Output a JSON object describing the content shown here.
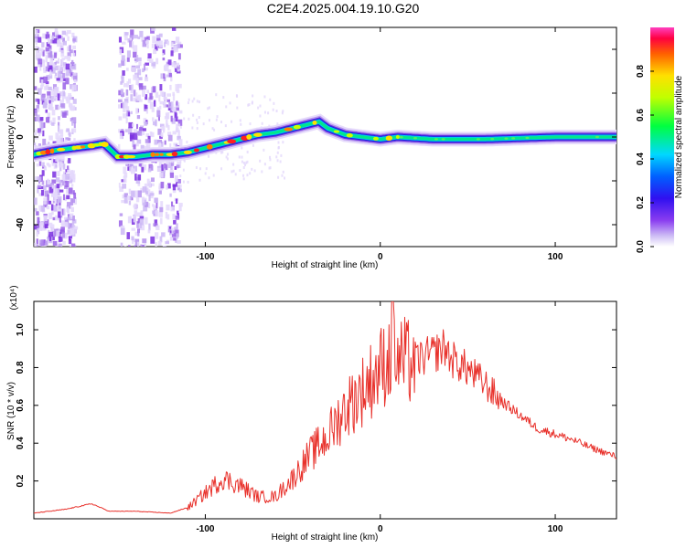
{
  "title": "C2E4.2025.004.19.10.G20",
  "chart_data": [
    {
      "type": "heatmap",
      "xlabel": "Height of straight line (km)",
      "ylabel": "Frequency (Hz)",
      "xlim": [
        -198,
        135
      ],
      "ylim": [
        -50,
        50
      ],
      "xticks": [
        -100,
        0,
        100
      ],
      "yticks": [
        -40,
        -20,
        0,
        20,
        40
      ],
      "colorbar": {
        "label": "Normalized spectral amplitude",
        "range": [
          0,
          1
        ],
        "ticks": [
          0.0,
          0.2,
          0.4,
          0.6,
          0.8
        ]
      },
      "ridge": {
        "x": [
          -198,
          -185,
          -175,
          -165,
          -158,
          -150,
          -140,
          -130,
          -120,
          -110,
          -100,
          -90,
          -80,
          -70,
          -60,
          -50,
          -40,
          -35,
          -30,
          -20,
          -10,
          0,
          10,
          30,
          60,
          100,
          135
        ],
        "y": [
          -8,
          -6,
          -5,
          -4,
          -3,
          -9,
          -9,
          -8,
          -8,
          -7,
          -5,
          -3,
          -1,
          1,
          2,
          4,
          6,
          7,
          4,
          1,
          0,
          -1,
          0,
          -1,
          -1,
          0,
          0
        ]
      },
      "noise_regions_x": [
        [
          -198,
          -175
        ],
        [
          -150,
          -115
        ]
      ]
    },
    {
      "type": "line",
      "xlabel": "Height of straight line (km)",
      "ylabel": "SNR (10 * v/v)",
      "y_multiplier": "(x10⁴)",
      "xlim": [
        -198,
        135
      ],
      "ylim": [
        0,
        1.15
      ],
      "xticks": [
        -100,
        0,
        100
      ],
      "yticks": [
        0.2,
        0.4,
        0.6,
        0.8,
        1.0
      ],
      "color": "#e8312b",
      "envelope": {
        "x": [
          -198,
          -180,
          -165,
          -155,
          -140,
          -120,
          -110,
          -100,
          -90,
          -80,
          -70,
          -60,
          -50,
          -40,
          -30,
          -20,
          -10,
          0,
          7,
          10,
          20,
          30,
          37,
          40,
          50,
          60,
          70,
          80,
          90,
          100,
          110,
          120,
          135
        ],
        "y": [
          0.03,
          0.05,
          0.08,
          0.04,
          0.04,
          0.03,
          0.06,
          0.14,
          0.22,
          0.18,
          0.12,
          0.12,
          0.22,
          0.35,
          0.45,
          0.6,
          0.7,
          0.82,
          0.9,
          0.86,
          0.85,
          0.88,
          0.92,
          0.86,
          0.8,
          0.72,
          0.62,
          0.55,
          0.48,
          0.45,
          0.42,
          0.38,
          0.33
        ]
      },
      "peak": {
        "x": 7,
        "y": 1.15
      }
    }
  ]
}
